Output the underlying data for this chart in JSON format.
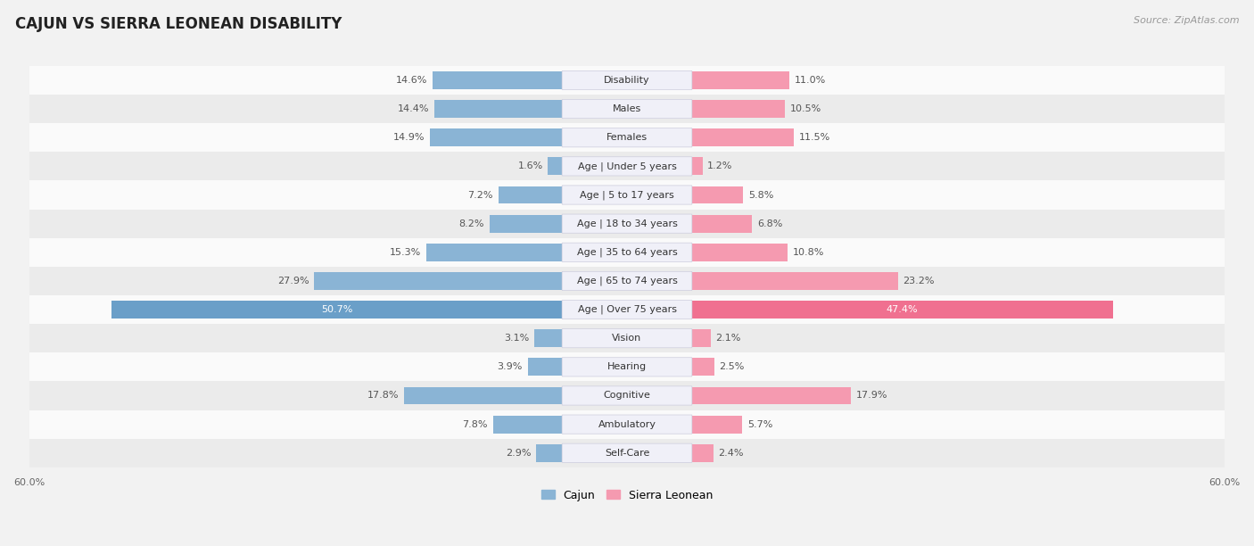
{
  "title": "CAJUN VS SIERRA LEONEAN DISABILITY",
  "source": "Source: ZipAtlas.com",
  "categories": [
    "Disability",
    "Males",
    "Females",
    "Age | Under 5 years",
    "Age | 5 to 17 years",
    "Age | 18 to 34 years",
    "Age | 35 to 64 years",
    "Age | 65 to 74 years",
    "Age | Over 75 years",
    "Vision",
    "Hearing",
    "Cognitive",
    "Ambulatory",
    "Self-Care"
  ],
  "cajun_values": [
    14.6,
    14.4,
    14.9,
    1.6,
    7.2,
    8.2,
    15.3,
    27.9,
    50.7,
    3.1,
    3.9,
    17.8,
    7.8,
    2.9
  ],
  "sierra_values": [
    11.0,
    10.5,
    11.5,
    1.2,
    5.8,
    6.8,
    10.8,
    23.2,
    47.4,
    2.1,
    2.5,
    17.9,
    5.7,
    2.4
  ],
  "cajun_color": "#8ab4d5",
  "sierra_color": "#f59ab0",
  "cajun_color_75": "#6a9fc8",
  "sierra_color_75": "#f07090",
  "max_val": 60.0,
  "bg_color": "#f2f2f2",
  "row_bg_odd": "#fafafa",
  "row_bg_even": "#ebebeb",
  "label_fontsize": 8.0,
  "title_fontsize": 12,
  "legend_fontsize": 9,
  "source_fontsize": 8,
  "center_label_color": "#f0f0f8",
  "center_label_edge": "#ccccdd"
}
